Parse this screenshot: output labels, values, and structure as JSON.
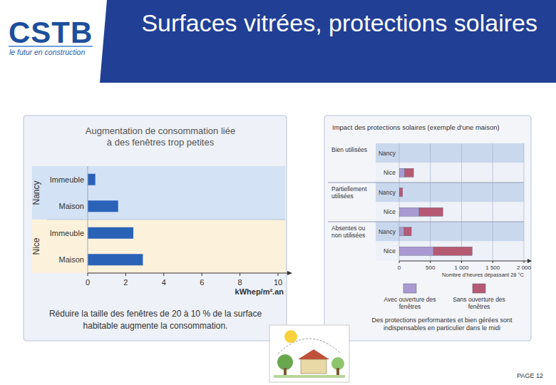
{
  "header": {
    "logo": "CSTB",
    "tagline": "le futur en construction",
    "title": "Surfaces vitrées, protections solaires"
  },
  "chart_data": [
    {
      "type": "bar",
      "orientation": "horizontal",
      "title": "Augmentation de consommation liée à des fenêtres trop petites",
      "categories": [
        "Immeuble",
        "Maison",
        "Immeuble",
        "Maison"
      ],
      "group_labels": [
        "Nancy",
        "Nice"
      ],
      "values": [
        0.4,
        1.6,
        2.4,
        2.9
      ],
      "color": "#2a62b8",
      "xlim": [
        0,
        10
      ],
      "xticks": [
        0,
        2,
        4,
        6,
        8,
        10
      ],
      "x_label": "kWhep/m².an",
      "grid": false,
      "annotation": "Réduire la taille des fenêtres de 20 à 10 % de la surface habitable augmente la consommation."
    },
    {
      "type": "bar",
      "orientation": "horizontal",
      "stacked": true,
      "title": "Impact des protections solaires (exemple d'une maison)",
      "categories": [
        "Nancy",
        "Nice",
        "Nancy",
        "Nice",
        "Nancy",
        "Nice"
      ],
      "group_labels": [
        "Bien utilisées",
        "Partiellement utilisées",
        "Absentes ou non utilisées"
      ],
      "series": [
        {
          "name": "Avec ouverture des fenêtres",
          "color": "#a99bd2",
          "values": [
            0,
            90,
            0,
            320,
            80,
            550
          ]
        },
        {
          "name": "Sans ouverture des fenêtres",
          "color": "#b65a73",
          "values": [
            0,
            140,
            55,
            380,
            115,
            620
          ]
        }
      ],
      "xlim": [
        0,
        2000
      ],
      "xticks": [
        0,
        500,
        {
          "value": 1000,
          "label": "1 000"
        },
        {
          "value": 1500,
          "label": "1 500"
        },
        {
          "value": 2000,
          "label": "2 000"
        }
      ],
      "x_label": "Nombre d'heures dépassant 28 °C",
      "grid": true,
      "legend": "bottom",
      "annotation": "Des protections performantes et bien gérées sont indispensables en particulier dans le midi"
    }
  ],
  "footer": {
    "page": "PAGE 12"
  }
}
